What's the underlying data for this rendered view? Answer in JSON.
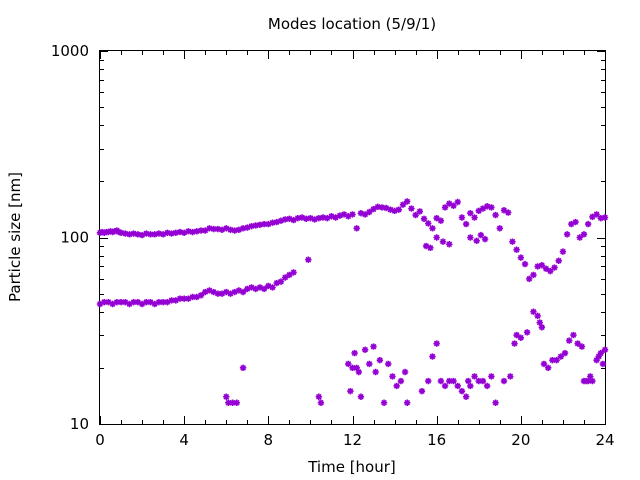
{
  "chart_data": {
    "type": "scatter",
    "title": "Modes location (5/9/1)",
    "xlabel": "Time [hour]",
    "ylabel": "Particle size [nm]",
    "xlim": [
      0,
      24
    ],
    "ylim": [
      10,
      1000
    ],
    "yscale": "log",
    "grid": false,
    "marker": "star",
    "color": "#9400D3",
    "xticks": [
      "0",
      "4",
      "8",
      "12",
      "16",
      "20",
      "24"
    ],
    "xtick_values": [
      0,
      4,
      8,
      12,
      16,
      20,
      24
    ],
    "yticks": [
      "10",
      "100",
      "1000"
    ],
    "ytick_values": [
      10,
      100,
      1000
    ],
    "series": [
      {
        "points": [
          [
            0.0,
            106
          ],
          [
            0.1,
            107
          ],
          [
            0.2,
            106
          ],
          [
            0.3,
            107
          ],
          [
            0.4,
            107
          ],
          [
            0.5,
            108
          ],
          [
            0.6,
            107
          ],
          [
            0.7,
            108
          ],
          [
            0.8,
            109
          ],
          [
            0.9,
            107
          ],
          [
            1.0,
            106
          ],
          [
            1.2,
            105
          ],
          [
            1.4,
            104
          ],
          [
            1.6,
            105
          ],
          [
            1.8,
            104
          ],
          [
            2.0,
            103
          ],
          [
            2.2,
            105
          ],
          [
            2.4,
            104
          ],
          [
            2.6,
            104
          ],
          [
            2.8,
            105
          ],
          [
            3.0,
            104
          ],
          [
            3.2,
            106
          ],
          [
            3.4,
            105
          ],
          [
            3.6,
            106
          ],
          [
            3.8,
            107
          ],
          [
            4.0,
            106
          ],
          [
            4.2,
            108
          ],
          [
            4.4,
            107
          ],
          [
            4.6,
            108
          ],
          [
            4.8,
            109
          ],
          [
            5.0,
            109
          ],
          [
            5.2,
            112
          ],
          [
            5.4,
            111
          ],
          [
            5.6,
            111
          ],
          [
            5.8,
            110
          ],
          [
            6.0,
            112
          ],
          [
            6.2,
            110
          ],
          [
            6.4,
            109
          ],
          [
            6.6,
            110
          ],
          [
            6.8,
            112
          ],
          [
            7.0,
            113
          ],
          [
            7.2,
            115
          ],
          [
            7.4,
            116
          ],
          [
            7.6,
            117
          ],
          [
            7.8,
            118
          ],
          [
            8.0,
            118
          ],
          [
            8.2,
            120
          ],
          [
            8.4,
            121
          ],
          [
            8.6,
            123
          ],
          [
            8.8,
            125
          ],
          [
            9.0,
            126
          ],
          [
            9.2,
            124
          ],
          [
            9.4,
            127
          ],
          [
            9.6,
            128
          ],
          [
            9.8,
            126
          ],
          [
            10.0,
            127
          ],
          [
            10.2,
            125
          ],
          [
            10.4,
            127
          ],
          [
            10.6,
            128
          ],
          [
            10.8,
            127
          ],
          [
            11.0,
            130
          ],
          [
            11.2,
            128
          ],
          [
            11.4,
            131
          ],
          [
            11.6,
            133
          ],
          [
            11.8,
            130
          ],
          [
            12.0,
            133
          ],
          [
            12.2,
            112
          ],
          [
            12.4,
            135
          ],
          [
            12.6,
            133
          ],
          [
            12.8,
            137
          ],
          [
            13.0,
            142
          ],
          [
            13.2,
            146
          ],
          [
            13.4,
            145
          ],
          [
            13.6,
            144
          ],
          [
            13.8,
            141
          ],
          [
            14.0,
            139
          ],
          [
            14.2,
            141
          ],
          [
            14.4,
            150
          ],
          [
            14.6,
            156
          ],
          [
            14.8,
            143
          ],
          [
            15.0,
            132
          ],
          [
            15.2,
            138
          ],
          [
            15.4,
            126
          ],
          [
            15.6,
            119
          ],
          [
            15.8,
            112
          ],
          [
            16.0,
            127
          ],
          [
            16.2,
            123
          ],
          [
            16.4,
            145
          ],
          [
            16.6,
            152
          ],
          [
            16.8,
            148
          ],
          [
            17.0,
            155
          ],
          [
            17.2,
            128
          ],
          [
            17.4,
            118
          ],
          [
            17.6,
            135
          ],
          [
            17.8,
            128
          ],
          [
            18.0,
            139
          ],
          [
            18.2,
            143
          ],
          [
            18.4,
            147
          ],
          [
            18.6,
            145
          ],
          [
            18.8,
            132
          ],
          [
            19.0,
            112
          ],
          [
            19.2,
            140
          ],
          [
            19.4,
            136
          ],
          [
            19.6,
            95
          ],
          [
            19.8,
            86
          ],
          [
            20.0,
            78
          ],
          [
            20.2,
            72
          ],
          [
            20.4,
            60
          ],
          [
            20.6,
            63
          ],
          [
            20.8,
            70
          ],
          [
            21.0,
            71
          ],
          [
            21.2,
            68
          ],
          [
            21.4,
            66
          ],
          [
            21.6,
            69
          ],
          [
            21.8,
            75
          ],
          [
            22.0,
            84
          ],
          [
            22.2,
            104
          ],
          [
            22.4,
            118
          ],
          [
            22.6,
            121
          ],
          [
            22.8,
            100
          ],
          [
            23.0,
            104
          ],
          [
            23.2,
            118
          ],
          [
            23.4,
            129
          ],
          [
            23.6,
            133
          ],
          [
            23.8,
            127
          ],
          [
            24.0,
            128
          ],
          [
            0.0,
            44
          ],
          [
            0.2,
            45
          ],
          [
            0.4,
            45
          ],
          [
            0.6,
            44
          ],
          [
            0.8,
            45
          ],
          [
            1.0,
            45
          ],
          [
            1.2,
            45
          ],
          [
            1.4,
            44
          ],
          [
            1.6,
            45
          ],
          [
            1.8,
            45
          ],
          [
            2.0,
            44
          ],
          [
            2.2,
            45
          ],
          [
            2.4,
            45
          ],
          [
            2.6,
            44
          ],
          [
            2.8,
            45
          ],
          [
            3.0,
            45
          ],
          [
            3.2,
            45
          ],
          [
            3.4,
            46
          ],
          [
            3.6,
            46
          ],
          [
            3.8,
            47
          ],
          [
            4.0,
            47
          ],
          [
            4.2,
            47
          ],
          [
            4.4,
            48
          ],
          [
            4.6,
            48
          ],
          [
            4.8,
            49
          ],
          [
            5.0,
            51
          ],
          [
            5.2,
            52
          ],
          [
            5.4,
            51
          ],
          [
            5.6,
            50
          ],
          [
            5.8,
            50
          ],
          [
            6.0,
            51
          ],
          [
            6.2,
            50
          ],
          [
            6.4,
            51
          ],
          [
            6.6,
            52
          ],
          [
            6.8,
            51
          ],
          [
            7.0,
            53
          ],
          [
            7.2,
            54
          ],
          [
            7.4,
            53
          ],
          [
            7.6,
            54
          ],
          [
            7.8,
            53
          ],
          [
            8.0,
            55
          ],
          [
            8.2,
            54
          ],
          [
            8.4,
            57
          ],
          [
            8.6,
            58
          ],
          [
            8.8,
            61
          ],
          [
            9.0,
            63
          ],
          [
            9.2,
            65
          ],
          [
            9.9,
            76
          ],
          [
            15.5,
            90
          ],
          [
            15.7,
            88
          ],
          [
            16.0,
            100
          ],
          [
            16.3,
            95
          ],
          [
            16.6,
            92
          ],
          [
            17.6,
            100
          ],
          [
            17.9,
            96
          ],
          [
            18.1,
            103
          ],
          [
            18.3,
            98
          ],
          [
            6.0,
            14
          ],
          [
            6.1,
            13
          ],
          [
            6.3,
            13
          ],
          [
            6.5,
            13
          ],
          [
            6.8,
            20
          ],
          [
            10.4,
            14
          ],
          [
            10.5,
            13
          ],
          [
            11.8,
            21
          ],
          [
            11.9,
            15
          ],
          [
            12.0,
            20
          ],
          [
            12.1,
            24
          ],
          [
            12.2,
            20
          ],
          [
            12.3,
            19
          ],
          [
            12.4,
            14
          ],
          [
            12.6,
            25
          ],
          [
            12.8,
            21
          ],
          [
            13.0,
            26
          ],
          [
            13.1,
            19
          ],
          [
            13.3,
            22
          ],
          [
            13.5,
            13
          ],
          [
            13.7,
            21
          ],
          [
            13.9,
            18
          ],
          [
            14.1,
            16
          ],
          [
            14.3,
            17
          ],
          [
            14.5,
            19
          ],
          [
            14.6,
            13
          ],
          [
            15.3,
            15
          ],
          [
            15.6,
            17
          ],
          [
            15.8,
            23
          ],
          [
            16.0,
            27
          ],
          [
            16.2,
            17
          ],
          [
            16.4,
            16
          ],
          [
            16.6,
            17
          ],
          [
            16.8,
            17
          ],
          [
            17.0,
            16
          ],
          [
            17.2,
            15
          ],
          [
            17.4,
            14
          ],
          [
            17.5,
            17
          ],
          [
            17.6,
            16
          ],
          [
            17.8,
            18
          ],
          [
            18.0,
            17
          ],
          [
            18.2,
            17
          ],
          [
            18.4,
            16
          ],
          [
            18.6,
            18
          ],
          [
            18.8,
            13
          ],
          [
            19.2,
            17
          ],
          [
            19.5,
            18
          ],
          [
            19.7,
            27
          ],
          [
            19.8,
            30
          ],
          [
            20.0,
            29
          ],
          [
            20.3,
            31
          ],
          [
            20.6,
            40
          ],
          [
            20.8,
            38
          ],
          [
            20.9,
            35
          ],
          [
            21.0,
            33
          ],
          [
            21.1,
            21
          ],
          [
            21.3,
            20
          ],
          [
            21.5,
            22
          ],
          [
            21.7,
            22
          ],
          [
            21.9,
            23
          ],
          [
            22.1,
            24
          ],
          [
            22.3,
            28
          ],
          [
            22.5,
            30
          ],
          [
            22.7,
            27
          ],
          [
            22.9,
            26
          ],
          [
            23.0,
            17
          ],
          [
            23.1,
            17
          ],
          [
            23.2,
            17
          ],
          [
            23.3,
            18
          ],
          [
            23.4,
            17
          ],
          [
            23.6,
            22
          ],
          [
            23.7,
            23
          ],
          [
            23.8,
            24
          ],
          [
            23.9,
            21
          ],
          [
            24.0,
            25
          ]
        ]
      }
    ]
  }
}
